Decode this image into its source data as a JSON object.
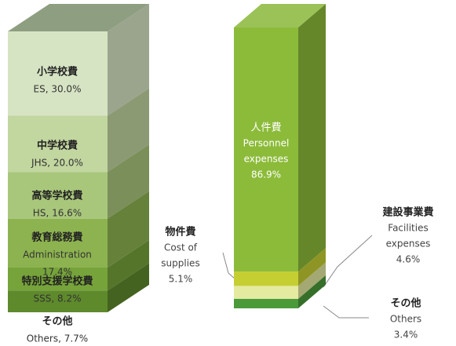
{
  "chart_data": [
    {
      "type": "bar3d",
      "series": [
        {
          "name": "その他",
          "sublabel": [],
          "values": [
            7.7
          ],
          "value_labels": [
            "Others, 7.7%"
          ],
          "color": "#5e8a2c"
        },
        {
          "name": "特別支援学校費",
          "sublabel": [],
          "values": [
            8.2
          ],
          "value_labels": [
            "SSS, 8.2%"
          ],
          "color": "#76a33a"
        },
        {
          "name": "教育総務費",
          "sublabel": [
            "Administration"
          ],
          "values": [
            17.4
          ],
          "value_labels": [
            "17.4%"
          ],
          "color": "#8db350"
        },
        {
          "name": "高等学校費",
          "sublabel": [],
          "values": [
            16.6
          ],
          "value_labels": [
            "HS, 16.6%"
          ],
          "color": "#a9c77b"
        },
        {
          "name": "中学校費",
          "sublabel": [],
          "values": [
            20.0
          ],
          "value_labels": [
            "JHS, 20.0%"
          ],
          "color": "#c2d6a0"
        },
        {
          "name": "小学校費",
          "sublabel": [],
          "values": [
            30.0
          ],
          "value_labels": [
            "ES, 30.0%"
          ],
          "color": "#d7e4c4"
        }
      ]
    },
    {
      "type": "bar3d",
      "series": [
        {
          "name": "その他",
          "sublabel": [
            "Others"
          ],
          "values": [
            3.4
          ],
          "value_labels": [
            "3.4%"
          ],
          "color": "#4a9a3a"
        },
        {
          "name": "建設事業費",
          "sublabel": [
            "Facilities",
            "expenses"
          ],
          "values": [
            4.6
          ],
          "value_labels": [
            "4.6%"
          ],
          "color": "#e4eaa0"
        },
        {
          "name": "物件費",
          "sublabel": [
            "Cost of",
            "supplies"
          ],
          "values": [
            5.1
          ],
          "value_labels": [
            "5.1%"
          ],
          "color": "#c6cf32"
        },
        {
          "name": "人件費",
          "sublabel": [
            "Personnel",
            "expenses"
          ],
          "values": [
            86.9
          ],
          "value_labels": [
            "86.9%"
          ],
          "color": "#8cbb3a"
        }
      ]
    }
  ]
}
